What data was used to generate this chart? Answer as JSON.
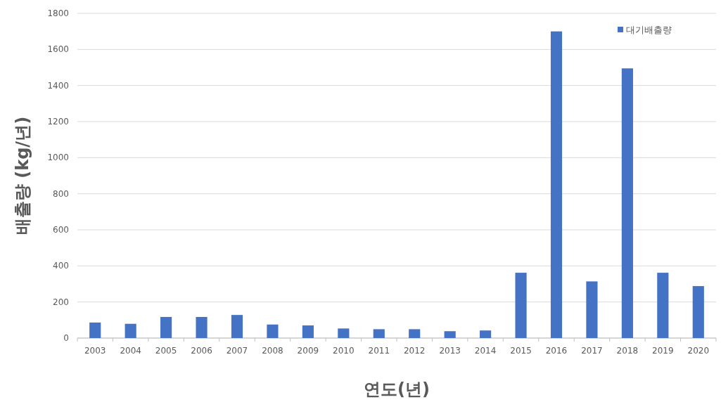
{
  "chart_data": {
    "type": "bar",
    "xlabel": "연도(년)",
    "ylabel": "배출량 (kg/년)",
    "categories": [
      "2003",
      "2004",
      "2005",
      "2006",
      "2007",
      "2008",
      "2009",
      "2010",
      "2011",
      "2012",
      "2013",
      "2014",
      "2015",
      "2016",
      "2017",
      "2018",
      "2019",
      "2020"
    ],
    "series": [
      {
        "name": "대기배출량",
        "color": "#4472c4",
        "values": [
          86,
          79,
          117,
          117,
          128,
          75,
          70,
          53,
          49,
          49,
          38,
          42,
          362,
          1700,
          314,
          1495,
          362,
          288
        ]
      }
    ],
    "ylim": [
      0,
      1800
    ],
    "yticks": [
      0,
      200,
      400,
      600,
      800,
      1000,
      1200,
      1400,
      1600,
      1800
    ],
    "grid": "y",
    "legend": "top right"
  }
}
